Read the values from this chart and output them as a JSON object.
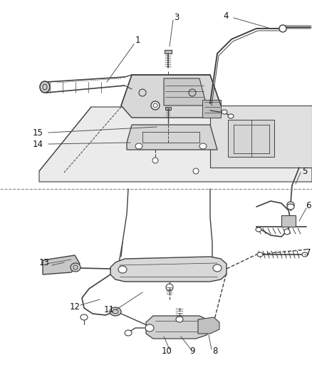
{
  "bg_color": "#ffffff",
  "line_color": "#404040",
  "label_color": "#111111",
  "label_fontsize": 8.5,
  "leader_color": "#555555",
  "part_fill": "#e8e8e8",
  "part_fill2": "#d0d0d0",
  "white": "#ffffff"
}
